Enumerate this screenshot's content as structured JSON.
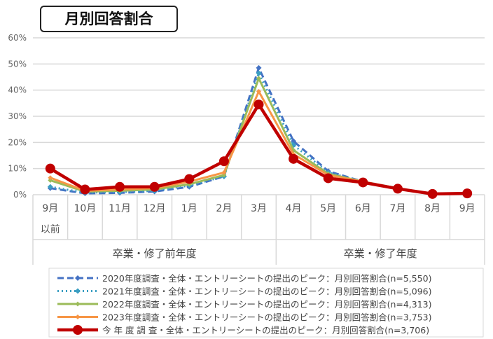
{
  "chart_data": {
    "type": "line",
    "title": "月別回答割合",
    "categories": [
      "9月\n以前",
      "10月",
      "11月",
      "12月",
      "1月",
      "2月",
      "3月",
      "4月",
      "5月",
      "6月",
      "7月",
      "8月",
      "9月"
    ],
    "category_groups": [
      {
        "label": "卒業・修了前年度",
        "span": [
          "9月\n以前",
          "3月"
        ]
      },
      {
        "label": "卒業・修了年度",
        "span": [
          "4月",
          "9月"
        ]
      }
    ],
    "ylim": [
      0,
      60
    ],
    "yticks": [
      "0%",
      "10%",
      "20%",
      "30%",
      "40%",
      "50%",
      "60%"
    ],
    "grid": true,
    "legend": "bottom",
    "series": [
      {
        "name": "2020年度調査・全体・エントリーシートの提出のピーク：月別回答割合(n=5,550)",
        "color": "#4472c4",
        "style": "dashed-diamond",
        "values": [
          2.5,
          0.5,
          0.7,
          1.2,
          3,
          7,
          48.5,
          20.5,
          9,
          5,
          2.5,
          0.3,
          0.5
        ]
      },
      {
        "name": "2021年度調査・全体・エントリーシートの提出のピーク：月別回答割合(n=5,096)",
        "color": "#3a9ec2",
        "style": "dotted-diamond",
        "values": [
          3,
          0.8,
          1,
          1.5,
          3.5,
          7,
          46.5,
          19,
          8.5,
          5,
          2.3,
          0.3,
          0.5
        ]
      },
      {
        "name": "2022年度調査・全体・エントリーシートの提出のピーク：月別回答割合(n=4,313)",
        "color": "#9bbb59",
        "style": "solid-light",
        "values": [
          5.5,
          1.2,
          1.5,
          2,
          4,
          7.5,
          44.5,
          17,
          8,
          5,
          2.3,
          0.3,
          0.5
        ]
      },
      {
        "name": "2023年度調査・全体・エントリーシートの提出のピーク：月別回答割合(n=3,753)",
        "color": "#f79646",
        "style": "solid",
        "values": [
          6.5,
          1.5,
          2,
          2.5,
          5,
          8.5,
          39.5,
          15.5,
          7.5,
          5,
          2.5,
          0.3,
          0.5
        ]
      },
      {
        "name": "今 年 度 調 査・全体・エントリーシートの提出のピーク：月別回答割合(n=3,706)",
        "color": "#c00000",
        "style": "bold-circle",
        "values": [
          10,
          2,
          3,
          3,
          6,
          12.8,
          34.5,
          13.7,
          6.3,
          4.7,
          2.3,
          0.3,
          0.5
        ]
      }
    ]
  }
}
